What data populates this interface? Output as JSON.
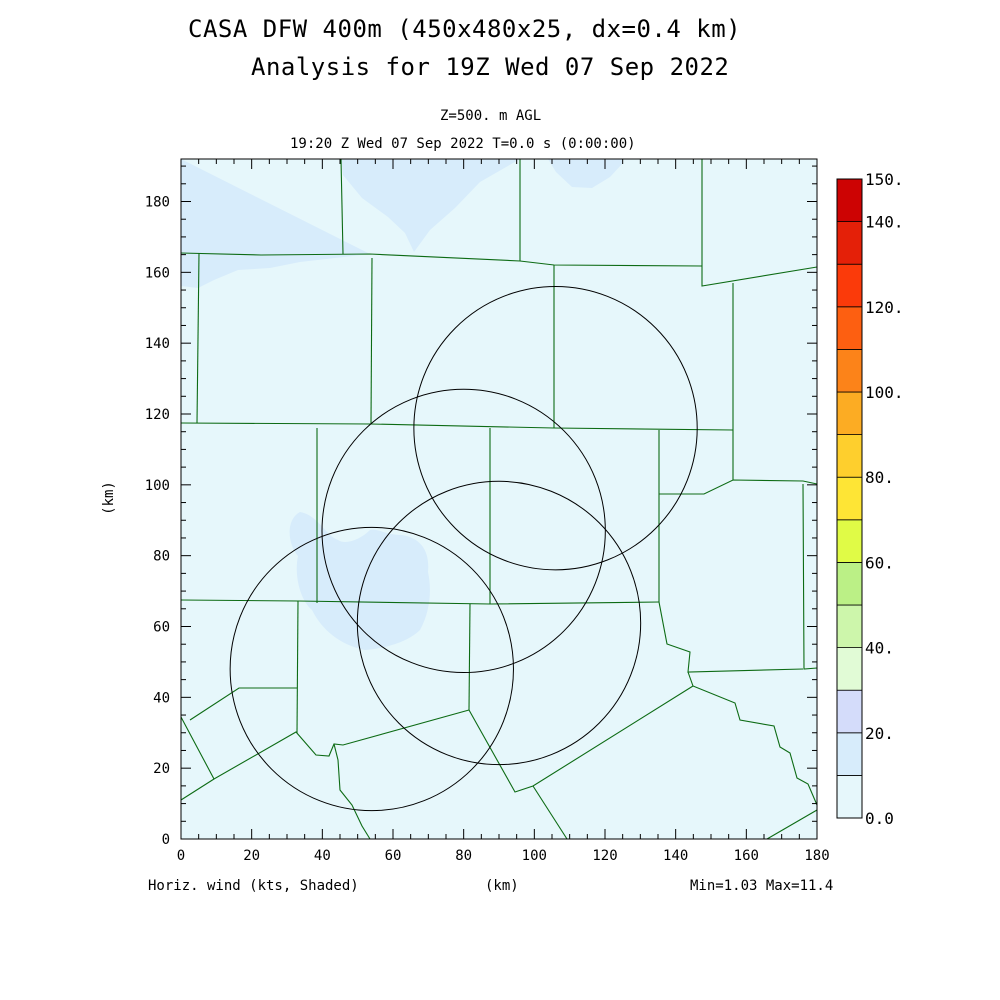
{
  "title": {
    "line1": "CASA DFW 400m (450x480x25, dx=0.4 km)",
    "line2": "Analysis for 19Z Wed 07 Sep 2022"
  },
  "subtitle": {
    "level": "Z=500. m AGL",
    "time": "19:20 Z Wed 07 Sep 2022   T=0.0 s (0:00:00)"
  },
  "axes": {
    "xlabel": "(km)",
    "ylabel": "(km)",
    "xlim": [
      0,
      180
    ],
    "ylim": [
      0,
      192
    ],
    "xticks": [
      "0",
      "20",
      "40",
      "60",
      "80",
      "100",
      "120",
      "140",
      "160",
      "180"
    ],
    "yticks": [
      "0",
      "20",
      "40",
      "60",
      "80",
      "100",
      "120",
      "140",
      "160",
      "180"
    ]
  },
  "footer": {
    "field": "Horiz. wind (kts, Shaded)",
    "stats": "Min=1.03 Max=11.4"
  },
  "colorbar": {
    "labels": [
      "0.0",
      "20.",
      "40.",
      "60.",
      "80.",
      "100.",
      "120.",
      "140.",
      "150."
    ],
    "label_values": [
      0,
      20,
      40,
      60,
      80,
      100,
      120,
      140,
      150
    ],
    "levels": [
      0,
      10,
      20,
      30,
      40,
      50,
      60,
      70,
      80,
      90,
      100,
      110,
      120,
      130,
      140,
      150
    ],
    "colors": [
      "#e6f7fb",
      "#d7ecfb",
      "#d4dcfa",
      "#e1fbd6",
      "#cdf6ab",
      "#bbf086",
      "#e0fb46",
      "#fee535",
      "#fecf2d",
      "#fcac23",
      "#fc8319",
      "#fd5f11",
      "#fb3a0a",
      "#e42008",
      "#cd0303"
    ]
  },
  "chart_data": {
    "type": "heatmap",
    "field": "horizontal wind speed (kts)",
    "min": 1.03,
    "max": 11.4,
    "xlim": [
      0,
      180
    ],
    "ylim": [
      0,
      192
    ],
    "background_level": [
      0,
      10
    ],
    "regions_above_10kts": [
      {
        "area": "northwest corner",
        "x": [
          0,
          65
        ],
        "y": [
          172,
          192
        ]
      },
      {
        "area": "north-central",
        "x": [
          105,
          120
        ],
        "y": [
          186,
          192
        ]
      },
      {
        "area": "west-central",
        "x": [
          32,
          70
        ],
        "y": [
          54,
          92
        ]
      }
    ],
    "radar_range_rings": [
      {
        "center": [
          106,
          116
        ],
        "radius_km": 40
      },
      {
        "center": [
          80,
          87
        ],
        "radius_km": 40
      },
      {
        "center": [
          90,
          61
        ],
        "radius_km": 40
      },
      {
        "center": [
          54,
          48
        ],
        "radius_km": 40
      }
    ]
  }
}
